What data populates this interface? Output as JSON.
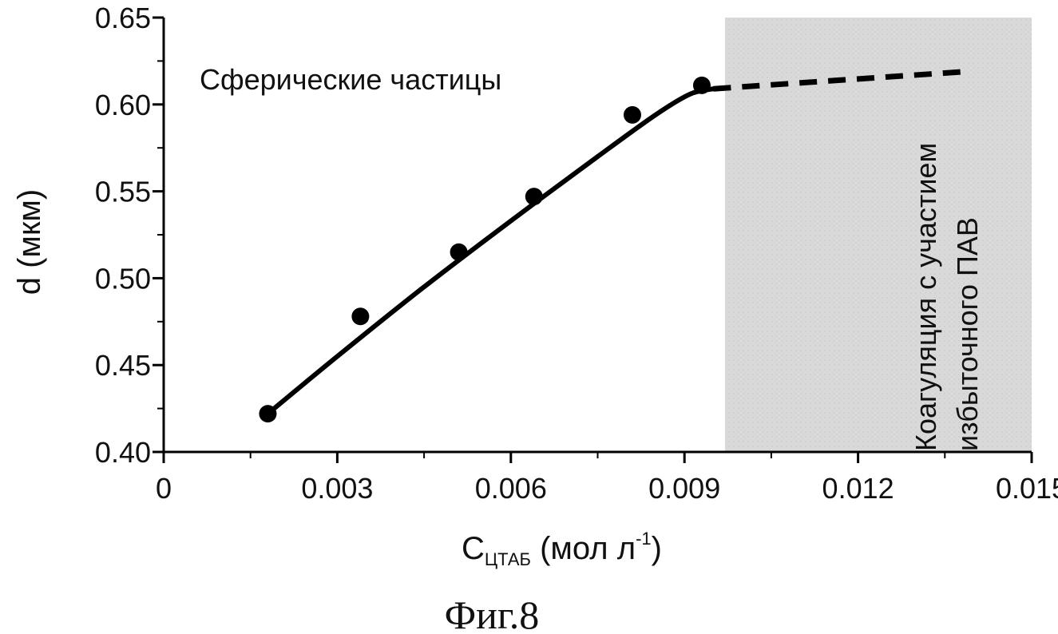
{
  "chart_data": {
    "type": "scatter",
    "xlabel_main": "C",
    "xlabel_sub": "ЦТАБ",
    "xlabel_units": " (мол л",
    "xlabel_sup": "-1",
    "xlabel_close": ")",
    "ylabel": "d (мкм)",
    "xlim": [
      0,
      0.015
    ],
    "ylim": [
      0.4,
      0.65
    ],
    "x_ticks": [
      0,
      0.003,
      0.006,
      0.009,
      0.012,
      0.015
    ],
    "x_tick_labels": [
      "0",
      "0.003",
      "0.006",
      "0.009",
      "0.012",
      "0.015"
    ],
    "y_ticks": [
      0.4,
      0.45,
      0.5,
      0.55,
      0.6,
      0.65
    ],
    "y_tick_labels": [
      "0.40",
      "0.45",
      "0.50",
      "0.55",
      "0.60",
      "0.65"
    ],
    "grid": false,
    "series": [
      {
        "points": [
          {
            "x": 0.0018,
            "y": 0.422
          },
          {
            "x": 0.0034,
            "y": 0.478
          },
          {
            "x": 0.0051,
            "y": 0.515
          },
          {
            "x": 0.0064,
            "y": 0.547
          },
          {
            "x": 0.0081,
            "y": 0.594
          },
          {
            "x": 0.0093,
            "y": 0.611
          }
        ]
      }
    ],
    "fit_curve": [
      {
        "x": 0.0018,
        "y": 0.422
      },
      {
        "x": 0.003,
        "y": 0.455
      },
      {
        "x": 0.0045,
        "y": 0.495
      },
      {
        "x": 0.006,
        "y": 0.533
      },
      {
        "x": 0.0075,
        "y": 0.57
      },
      {
        "x": 0.0085,
        "y": 0.594
      },
      {
        "x": 0.0091,
        "y": 0.606
      },
      {
        "x": 0.0095,
        "y": 0.609
      }
    ],
    "dashed_line": [
      {
        "x": 0.0095,
        "y": 0.609
      },
      {
        "x": 0.0139,
        "y": 0.619
      }
    ],
    "shaded_region": {
      "x_from": 0.0097,
      "x_to": 0.015
    },
    "annotations": {
      "spherical": "Сферические частицы",
      "coag_line1": "Коагуляция с участием",
      "coag_line2": "избыточного ПАВ"
    },
    "caption": "Фиг.8"
  }
}
